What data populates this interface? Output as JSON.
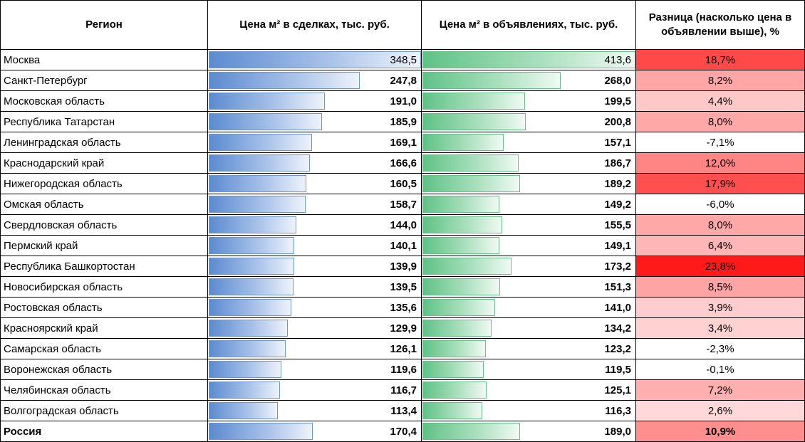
{
  "headers": {
    "region": "Регион",
    "deals": "Цена м² в сделках, тыс. руб.",
    "listings": "Цена м² в объявлениях, тыс. руб.",
    "diff": "Разница (насколько цена в объявлении выше), %"
  },
  "scale": {
    "deals_max": 348.5,
    "listings_max": 413.6,
    "diff_max": 23.8
  },
  "colors": {
    "diff_high": "#ff1a1a",
    "diff_low": "#fff0f0",
    "negative_bg": "#ffffff"
  },
  "rows": [
    {
      "region": "Москва",
      "deals": 348.5,
      "deals_text": "348,5",
      "listings": 413.6,
      "listings_text": "413,6",
      "diff": 18.7,
      "diff_text": "18,7%"
    },
    {
      "region": "Санкт-Петербург",
      "deals": 247.8,
      "deals_text": "247,8",
      "listings": 268.0,
      "listings_text": "268,0",
      "diff": 8.2,
      "diff_text": "8,2%"
    },
    {
      "region": "Московская область",
      "deals": 191.0,
      "deals_text": "191,0",
      "listings": 199.5,
      "listings_text": "199,5",
      "diff": 4.4,
      "diff_text": "4,4%"
    },
    {
      "region": "Республика Татарстан",
      "deals": 185.9,
      "deals_text": "185,9",
      "listings": 200.8,
      "listings_text": "200,8",
      "diff": 8.0,
      "diff_text": "8,0%"
    },
    {
      "region": "Ленинградская область",
      "deals": 169.1,
      "deals_text": "169,1",
      "listings": 157.1,
      "listings_text": "157,1",
      "diff": -7.1,
      "diff_text": "-7,1%"
    },
    {
      "region": "Краснодарский край",
      "deals": 166.6,
      "deals_text": "166,6",
      "listings": 186.7,
      "listings_text": "186,7",
      "diff": 12.0,
      "diff_text": "12,0%"
    },
    {
      "region": "Нижегородская область",
      "deals": 160.5,
      "deals_text": "160,5",
      "listings": 189.2,
      "listings_text": "189,2",
      "diff": 17.9,
      "diff_text": "17,9%"
    },
    {
      "region": "Омская область",
      "deals": 158.7,
      "deals_text": "158,7",
      "listings": 149.2,
      "listings_text": "149,2",
      "diff": -6.0,
      "diff_text": "-6,0%"
    },
    {
      "region": "Свердловская область",
      "deals": 144.0,
      "deals_text": "144,0",
      "listings": 155.5,
      "listings_text": "155,5",
      "diff": 8.0,
      "diff_text": "8,0%"
    },
    {
      "region": "Пермский край",
      "deals": 140.1,
      "deals_text": "140,1",
      "listings": 149.1,
      "listings_text": "149,1",
      "diff": 6.4,
      "diff_text": "6,4%"
    },
    {
      "region": "Республика Башкортостан",
      "deals": 139.9,
      "deals_text": "139,9",
      "listings": 173.2,
      "listings_text": "173,2",
      "diff": 23.8,
      "diff_text": "23,8%"
    },
    {
      "region": "Новосибирская область",
      "deals": 139.5,
      "deals_text": "139,5",
      "listings": 151.3,
      "listings_text": "151,3",
      "diff": 8.5,
      "diff_text": "8,5%"
    },
    {
      "region": "Ростовская область",
      "deals": 135.6,
      "deals_text": "135,6",
      "listings": 141.0,
      "listings_text": "141,0",
      "diff": 3.9,
      "diff_text": "3,9%"
    },
    {
      "region": "Красноярский край",
      "deals": 129.9,
      "deals_text": "129,9",
      "listings": 134.2,
      "listings_text": "134,2",
      "diff": 3.4,
      "diff_text": "3,4%"
    },
    {
      "region": "Самарская область",
      "deals": 126.1,
      "deals_text": "126,1",
      "listings": 123.2,
      "listings_text": "123,2",
      "diff": -2.3,
      "diff_text": "-2,3%"
    },
    {
      "region": "Воронежская область",
      "deals": 119.6,
      "deals_text": "119,6",
      "listings": 119.5,
      "listings_text": "119,5",
      "diff": -0.1,
      "diff_text": "-0,1%"
    },
    {
      "region": "Челябинская область",
      "deals": 116.7,
      "deals_text": "116,7",
      "listings": 125.1,
      "listings_text": "125,1",
      "diff": 7.2,
      "diff_text": "7,2%"
    },
    {
      "region": "Волгоградская область",
      "deals": 113.4,
      "deals_text": "113,4",
      "listings": 116.3,
      "listings_text": "116,3",
      "diff": 2.6,
      "diff_text": "2,6%"
    }
  ],
  "total": {
    "region": "Россия",
    "deals": 170.4,
    "deals_text": "170,4",
    "listings": 189.0,
    "listings_text": "189,0",
    "diff": 10.9,
    "diff_text": "10,9%"
  }
}
